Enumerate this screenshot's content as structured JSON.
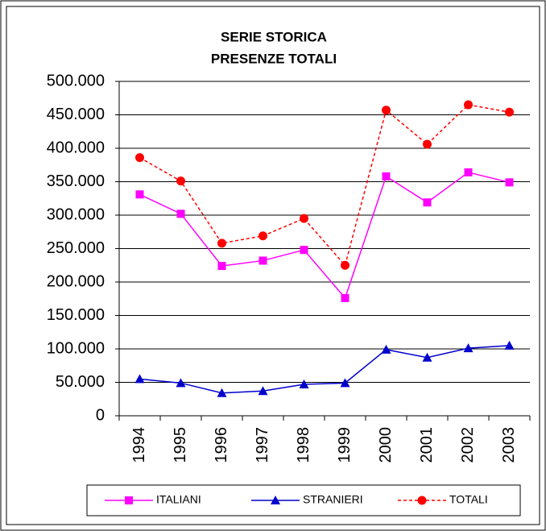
{
  "chart_data": {
    "type": "line",
    "title": [
      "SERIE STORICA",
      "PRESENZE TOTALI"
    ],
    "categories": [
      "1994",
      "1995",
      "1996",
      "1997",
      "1998",
      "1999",
      "2000",
      "2001",
      "2002",
      "2003"
    ],
    "series": [
      {
        "name": "ITALIANI",
        "color": "#ff00ff",
        "marker": "square",
        "dash": false,
        "values": [
          331000,
          302000,
          224000,
          232000,
          248000,
          176000,
          358000,
          319000,
          364000,
          349000
        ]
      },
      {
        "name": "STRANIERI",
        "color": "#0000cc",
        "marker": "triangle",
        "dash": false,
        "values": [
          55000,
          49000,
          34000,
          37000,
          47000,
          49000,
          99000,
          87000,
          101000,
          105000
        ]
      },
      {
        "name": "TOTALI",
        "color": "#ff0000",
        "marker": "circle",
        "dash": true,
        "values": [
          386000,
          351000,
          258000,
          269000,
          295000,
          225000,
          457000,
          406000,
          465000,
          454000
        ]
      }
    ],
    "ylim": [
      0,
      500000
    ],
    "yticks": [
      0,
      {
        "value": 50000,
        "label": "50.000"
      },
      {
        "value": 100000,
        "label": "100.000"
      },
      {
        "value": 150000,
        "label": "150.000"
      },
      {
        "value": 200000,
        "label": "200.000"
      },
      {
        "value": 250000,
        "label": "250.000"
      },
      {
        "value": 300000,
        "label": "300.000"
      },
      {
        "value": 350000,
        "label": "350.000"
      },
      {
        "value": 400000,
        "label": "400.000"
      },
      {
        "value": 450000,
        "label": "450.000"
      },
      {
        "value": 500000,
        "label": "500.000"
      }
    ],
    "grid": true,
    "legend": "bottom"
  }
}
